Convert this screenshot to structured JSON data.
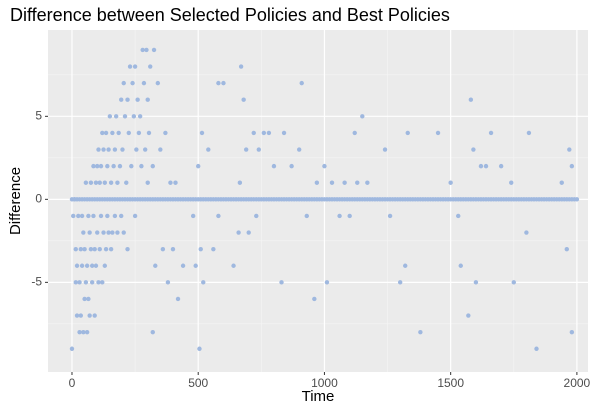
{
  "chart_data": {
    "type": "scatter",
    "title": "Difference between Selected Policies and Best Policies",
    "x_label": "Time",
    "y_label": "Difference",
    "color": "#9fb8df",
    "grid": true,
    "minor_grid": true,
    "xlim": [
      -95,
      2044
    ],
    "ylim": [
      -10.4,
      10.2
    ],
    "xticks": [
      0,
      500,
      1000,
      1500,
      2000
    ],
    "yticks": [
      -5,
      0,
      5
    ],
    "x": [
      0,
      5,
      10,
      15,
      15,
      20,
      20,
      25,
      30,
      30,
      35,
      35,
      40,
      40,
      45,
      45,
      50,
      50,
      55,
      55,
      60,
      60,
      65,
      65,
      70,
      70,
      75,
      75,
      80,
      80,
      85,
      85,
      90,
      90,
      95,
      95,
      100,
      100,
      105,
      105,
      110,
      110,
      115,
      115,
      120,
      120,
      125,
      125,
      130,
      130,
      135,
      135,
      140,
      140,
      145,
      145,
      150,
      155,
      155,
      160,
      160,
      165,
      170,
      170,
      175,
      180,
      180,
      185,
      190,
      195,
      195,
      200,
      205,
      205,
      210,
      215,
      220,
      220,
      225,
      230,
      235,
      240,
      245,
      250,
      250,
      255,
      260,
      265,
      270,
      275,
      280,
      285,
      290,
      295,
      300,
      300,
      305,
      310,
      320,
      320,
      325,
      330,
      340,
      350,
      360,
      370,
      380,
      390,
      400,
      410,
      420,
      440,
      480,
      490,
      500,
      505,
      510,
      515,
      520,
      540,
      560,
      580,
      580,
      600,
      640,
      660,
      665,
      670,
      680,
      690,
      700,
      720,
      730,
      740,
      760,
      780,
      800,
      830,
      840,
      870,
      900,
      910,
      930,
      960,
      970,
      1000,
      1010,
      1030,
      1060,
      1080,
      1100,
      1120,
      1130,
      1150,
      1170,
      1240,
      1260,
      1300,
      1320,
      1330,
      1380,
      1450,
      1500,
      1530,
      1540,
      1570,
      1580,
      1590,
      1600,
      1620,
      1640,
      1660,
      1700,
      1740,
      1750,
      1800,
      1810,
      1840,
      1940,
      1960,
      1970,
      1980,
      1980,
      0,
      10,
      20,
      30,
      40,
      50,
      60,
      70,
      80,
      90,
      100,
      110,
      120,
      130,
      140,
      150,
      160,
      170,
      180,
      190,
      200,
      210,
      220,
      230,
      240,
      250,
      260,
      270,
      280,
      290,
      300,
      310,
      320,
      330,
      340,
      350,
      360,
      370,
      380,
      390,
      400,
      410,
      420,
      430,
      440,
      450,
      460,
      470,
      480,
      490,
      500,
      510,
      520,
      530,
      540,
      550,
      560,
      570,
      580,
      590,
      600,
      610,
      620,
      630,
      640,
      650,
      660,
      670,
      680,
      690,
      700,
      710,
      720,
      730,
      740,
      750,
      760,
      770,
      780,
      790,
      800,
      810,
      820,
      830,
      840,
      850,
      860,
      870,
      880,
      890,
      900,
      910,
      920,
      930,
      940,
      950,
      960,
      970,
      980,
      990,
      1000,
      1010,
      1020,
      1030,
      1040,
      1050,
      1060,
      1070,
      1080,
      1090,
      1100,
      1110,
      1120,
      1130,
      1140,
      1150,
      1160,
      1170,
      1180,
      1190,
      1200,
      1210,
      1220,
      1230,
      1240,
      1250,
      1260,
      1270,
      1280,
      1290,
      1300,
      1310,
      1320,
      1330,
      1340,
      1350,
      1360,
      1370,
      1380,
      1390,
      1400,
      1410,
      1420,
      1430,
      1440,
      1450,
      1460,
      1470,
      1480,
      1490,
      1500,
      1510,
      1520,
      1530,
      1540,
      1550,
      1560,
      1570,
      1580,
      1590,
      1600,
      1610,
      1620,
      1630,
      1640,
      1650,
      1660,
      1670,
      1680,
      1690,
      1700,
      1710,
      1720,
      1730,
      1740,
      1750,
      1760,
      1770,
      1780,
      1790,
      1800,
      1810,
      1820,
      1830,
      1840,
      1850,
      1860,
      1870,
      1880,
      1890,
      1900,
      1910,
      1920,
      1930,
      1940,
      1950,
      1960,
      1970,
      1980,
      1990,
      2000
    ],
    "values": [
      -9,
      -1,
      0,
      -3,
      -5,
      -7,
      -4,
      -1,
      -8,
      -5,
      -3,
      -7,
      -4,
      -1,
      -8,
      -2,
      -6,
      -3,
      1,
      -5,
      -4,
      -8,
      -1,
      -6,
      -2,
      -7,
      1,
      -3,
      -5,
      -4,
      2,
      -1,
      -7,
      -3,
      1,
      -4,
      2,
      -2,
      -5,
      3,
      1,
      -3,
      2,
      -1,
      4,
      -5,
      3,
      -2,
      1,
      -4,
      4,
      -3,
      2,
      -1,
      3,
      -2,
      5,
      1,
      -3,
      4,
      -2,
      2,
      3,
      -1,
      5,
      1,
      -2,
      4,
      2,
      6,
      -1,
      3,
      7,
      -2,
      5,
      1,
      6,
      -3,
      4,
      8,
      2,
      7,
      5,
      8,
      -1,
      3,
      6,
      4,
      5,
      2,
      9,
      7,
      3,
      9,
      6,
      1,
      4,
      8,
      2,
      -8,
      9,
      -4,
      7,
      3,
      -3,
      4,
      -5,
      1,
      -3,
      1,
      -6,
      -4,
      -1,
      -4,
      2,
      -9,
      -3,
      4,
      -5,
      3,
      -3,
      -1,
      7,
      7,
      -4,
      -2,
      1,
      8,
      6,
      3,
      -2,
      4,
      -1,
      3,
      4,
      4,
      2,
      -5,
      4,
      2,
      3,
      7,
      -1,
      -6,
      1,
      2,
      -5,
      1,
      -1,
      1,
      -1,
      4,
      1,
      5,
      1,
      3,
      -1,
      -5,
      -4,
      4,
      -8,
      4,
      1,
      -1,
      -4,
      -7,
      6,
      3,
      -5,
      2,
      2,
      4,
      2,
      1,
      -5,
      -2,
      4,
      -9,
      1,
      -3,
      3,
      -8,
      2,
      0,
      0,
      0,
      0,
      0,
      0,
      0,
      0,
      0,
      0,
      0,
      0,
      0,
      0,
      0,
      0,
      0,
      0,
      0,
      0,
      0,
      0,
      0,
      0,
      0,
      0,
      0,
      0,
      0,
      0,
      0,
      0,
      0,
      0,
      0,
      0,
      0,
      0,
      0,
      0,
      0,
      0,
      0,
      0,
      0,
      0,
      0,
      0,
      0,
      0,
      0,
      0,
      0,
      0,
      0,
      0,
      0,
      0,
      0,
      0,
      0,
      0,
      0,
      0,
      0,
      0,
      0,
      0,
      0,
      0,
      0,
      0,
      0,
      0,
      0,
      0,
      0,
      0,
      0,
      0,
      0,
      0,
      0,
      0,
      0,
      0,
      0,
      0,
      0,
      0,
      0,
      0,
      0,
      0,
      0,
      0,
      0,
      0,
      0,
      0,
      0,
      0,
      0,
      0,
      0,
      0,
      0,
      0,
      0,
      0,
      0,
      0,
      0,
      0,
      0,
      0,
      0,
      0,
      0,
      0,
      0,
      0,
      0,
      0,
      0,
      0,
      0,
      0,
      0,
      0,
      0,
      0,
      0,
      0,
      0,
      0,
      0,
      0,
      0,
      0,
      0,
      0,
      0,
      0,
      0,
      0,
      0,
      0,
      0,
      0,
      0,
      0,
      0,
      0,
      0,
      0,
      0,
      0,
      0,
      0,
      0,
      0,
      0,
      0,
      0,
      0,
      0,
      0,
      0,
      0,
      0,
      0,
      0,
      0,
      0,
      0,
      0,
      0,
      0,
      0,
      0,
      0,
      0,
      0,
      0,
      0,
      0,
      0,
      0,
      0,
      0,
      0,
      0,
      0,
      0,
      0,
      0,
      0,
      0,
      0,
      0
    ]
  }
}
